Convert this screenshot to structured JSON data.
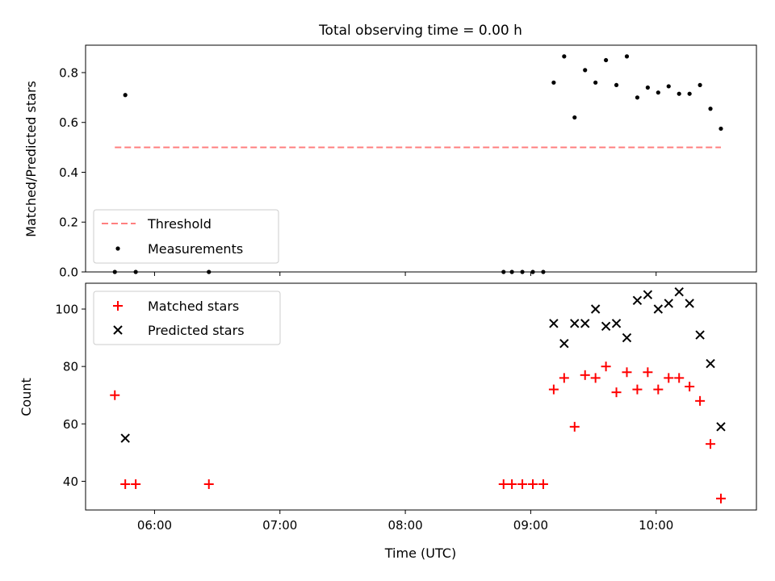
{
  "figure": {
    "title": "Total observing time = 0.00 h",
    "xlabel": "Time (UTC)"
  },
  "chart_data": [
    {
      "type": "scatter",
      "ylabel": "Matched/Predicted stars",
      "xlim": [
        "05:27",
        "10:48"
      ],
      "ylim": [
        0,
        0.91
      ],
      "yticks": [
        "0.0",
        "0.2",
        "0.4",
        "0.6",
        "0.8"
      ],
      "grid": false,
      "legend_position": "lower-left",
      "series": [
        {
          "name": "Threshold",
          "kind": "dashed-line",
          "color": "#ff7f7f",
          "points": [
            {
              "x": "05:41",
              "y": 0.5
            },
            {
              "x": "10:31",
              "y": 0.5
            }
          ]
        },
        {
          "name": "Measurements",
          "kind": "dots",
          "color": "#000000",
          "points": [
            {
              "x": "05:41",
              "y": 0.0
            },
            {
              "x": "05:46",
              "y": 0.71
            },
            {
              "x": "05:51",
              "y": 0.0
            },
            {
              "x": "06:26",
              "y": 0.0
            },
            {
              "x": "08:47",
              "y": 0.0
            },
            {
              "x": "08:51",
              "y": 0.0
            },
            {
              "x": "08:56",
              "y": 0.0
            },
            {
              "x": "09:01",
              "y": 0.0
            },
            {
              "x": "09:06",
              "y": 0.0
            },
            {
              "x": "09:11",
              "y": 0.76
            },
            {
              "x": "09:16",
              "y": 0.865
            },
            {
              "x": "09:21",
              "y": 0.62
            },
            {
              "x": "09:26",
              "y": 0.81
            },
            {
              "x": "09:31",
              "y": 0.76
            },
            {
              "x": "09:36",
              "y": 0.85
            },
            {
              "x": "09:41",
              "y": 0.75
            },
            {
              "x": "09:46",
              "y": 0.865
            },
            {
              "x": "09:51",
              "y": 0.7
            },
            {
              "x": "09:56",
              "y": 0.74
            },
            {
              "x": "10:01",
              "y": 0.72
            },
            {
              "x": "10:06",
              "y": 0.745
            },
            {
              "x": "10:11",
              "y": 0.715
            },
            {
              "x": "10:16",
              "y": 0.715
            },
            {
              "x": "10:21",
              "y": 0.75
            },
            {
              "x": "10:26",
              "y": 0.655
            },
            {
              "x": "10:31",
              "y": 0.575
            }
          ]
        }
      ]
    },
    {
      "type": "scatter",
      "ylabel": "Count",
      "xlim": [
        "05:27",
        "10:48"
      ],
      "ylim": [
        30,
        109
      ],
      "yticks": [
        "40",
        "60",
        "80",
        "100"
      ],
      "xticks": [
        "06:00",
        "07:00",
        "08:00",
        "09:00",
        "10:00"
      ],
      "grid": false,
      "legend_position": "upper-left",
      "series": [
        {
          "name": "Matched stars",
          "marker": "plus",
          "color": "#ff0000",
          "points": [
            {
              "x": "05:41",
              "y": 70
            },
            {
              "x": "05:46",
              "y": 39
            },
            {
              "x": "05:51",
              "y": 39
            },
            {
              "x": "06:26",
              "y": 39
            },
            {
              "x": "08:47",
              "y": 39
            },
            {
              "x": "08:51",
              "y": 39
            },
            {
              "x": "08:56",
              "y": 39
            },
            {
              "x": "09:01",
              "y": 39
            },
            {
              "x": "09:06",
              "y": 39
            },
            {
              "x": "09:11",
              "y": 72
            },
            {
              "x": "09:16",
              "y": 76
            },
            {
              "x": "09:21",
              "y": 59
            },
            {
              "x": "09:26",
              "y": 77
            },
            {
              "x": "09:31",
              "y": 76
            },
            {
              "x": "09:36",
              "y": 80
            },
            {
              "x": "09:41",
              "y": 71
            },
            {
              "x": "09:46",
              "y": 78
            },
            {
              "x": "09:51",
              "y": 72
            },
            {
              "x": "09:56",
              "y": 78
            },
            {
              "x": "10:01",
              "y": 72
            },
            {
              "x": "10:06",
              "y": 76
            },
            {
              "x": "10:11",
              "y": 76
            },
            {
              "x": "10:16",
              "y": 73
            },
            {
              "x": "10:21",
              "y": 68
            },
            {
              "x": "10:26",
              "y": 53
            },
            {
              "x": "10:31",
              "y": 34
            }
          ]
        },
        {
          "name": "Predicted stars",
          "marker": "x",
          "color": "#000000",
          "points": [
            {
              "x": "05:46",
              "y": 55
            },
            {
              "x": "09:11",
              "y": 95
            },
            {
              "x": "09:16",
              "y": 88
            },
            {
              "x": "09:21",
              "y": 95
            },
            {
              "x": "09:26",
              "y": 95
            },
            {
              "x": "09:31",
              "y": 100
            },
            {
              "x": "09:36",
              "y": 94
            },
            {
              "x": "09:41",
              "y": 95
            },
            {
              "x": "09:46",
              "y": 90
            },
            {
              "x": "09:51",
              "y": 103
            },
            {
              "x": "09:56",
              "y": 105
            },
            {
              "x": "10:01",
              "y": 100
            },
            {
              "x": "10:06",
              "y": 102
            },
            {
              "x": "10:11",
              "y": 106
            },
            {
              "x": "10:16",
              "y": 102
            },
            {
              "x": "10:21",
              "y": 91
            },
            {
              "x": "10:26",
              "y": 81
            },
            {
              "x": "10:31",
              "y": 59
            }
          ]
        }
      ]
    }
  ]
}
